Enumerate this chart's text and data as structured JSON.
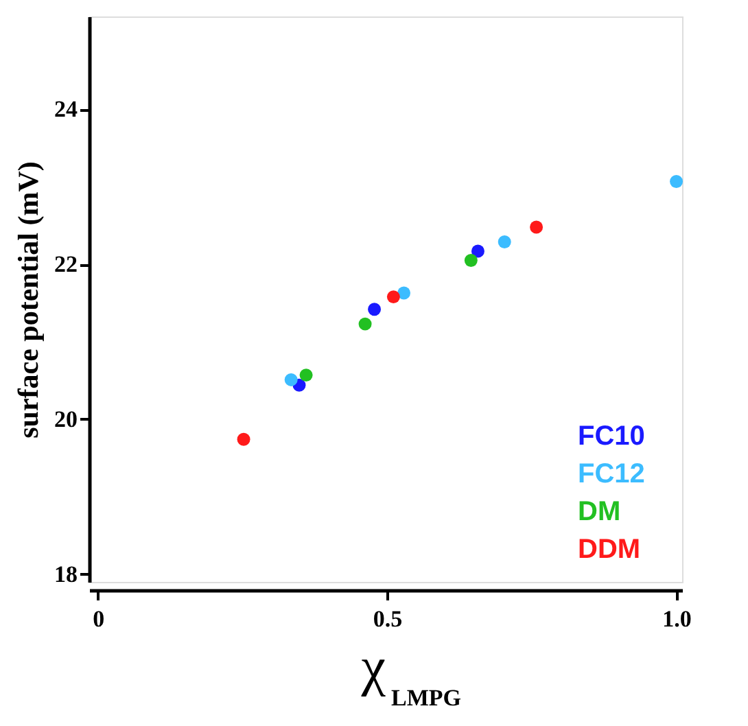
{
  "chart_data": {
    "type": "scatter",
    "xlabel": "χ$_{LMPG}$",
    "ylabel": "surface potential (mV)",
    "xlim": [
      -0.015,
      1.01
    ],
    "ylim": [
      17.9,
      25.2
    ],
    "xticks": [
      0,
      0.5,
      {
        "value": 1.0,
        "label": "1.0"
      }
    ],
    "yticks": [
      18,
      20,
      22,
      24
    ],
    "grid": false,
    "legend": "bottom right",
    "marker": "circle",
    "series": [
      {
        "name": "FC10",
        "color": "#1a1aff",
        "x": [
          0.348,
          0.478,
          0.657
        ],
        "values": [
          20.44,
          21.42,
          22.17
        ]
      },
      {
        "name": "FC12",
        "color": "#3cbcff",
        "x": [
          0.334,
          0.529,
          0.703,
          1.0
        ],
        "values": [
          20.51,
          21.63,
          22.29,
          23.07
        ]
      },
      {
        "name": "DM",
        "color": "#22c022",
        "x": [
          0.36,
          0.462,
          0.645
        ],
        "values": [
          20.57,
          21.23,
          22.05
        ]
      },
      {
        "name": "DDM",
        "color": "#ff1a1a",
        "x": [
          0.252,
          0.511,
          0.758
        ],
        "values": [
          19.74,
          21.58,
          22.48
        ]
      }
    ]
  }
}
